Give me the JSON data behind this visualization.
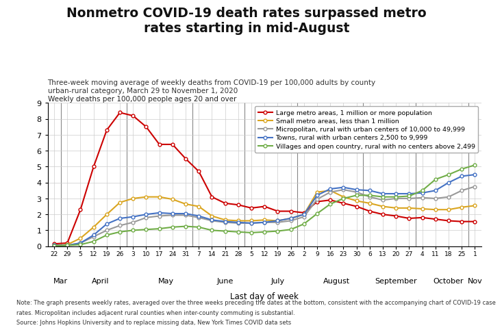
{
  "title": "Nonmetro COVID-19 death rates surpassed metro\nrates starting in mid-August",
  "subtitle": "Three-week moving average of weekly deaths from COVID-19 per 100,000 adults by county\nurban-rural category, March 29 to November 1, 2020",
  "ylabel": "Weekly deaths per 100,000 people ages 20 and over",
  "xlabel": "Last day of week",
  "note1": "Note: The graph presents weekly rates, averaged over the three weeks preceding the dates at the bottom, consistent with the accompanying chart of COVID-19 case",
  "note2": "rates. Micropolitan includes adjacent rural counties when inter-county commuting is substantial.",
  "note3": "Source: Johns Hopkins University and to replace missing data, New York Times COVID data sets",
  "x_tick_labels": [
    "22",
    "29",
    "5",
    "12",
    "19",
    "26",
    "3",
    "10",
    "17",
    "24",
    "31",
    "7",
    "14",
    "21",
    "28",
    "5",
    "12",
    "19",
    "26",
    "2",
    "9",
    "16",
    "23",
    "30",
    "6",
    "13",
    "20",
    "27",
    "4",
    "11",
    "18",
    "25",
    "1"
  ],
  "month_labels": [
    "Mar",
    "April",
    "May",
    "June",
    "July",
    "August",
    "September",
    "October",
    "Nov"
  ],
  "month_positions": [
    0,
    1,
    6,
    11,
    15,
    19,
    24,
    28,
    32
  ],
  "series": {
    "large_metro": {
      "label": "Large metro areas, 1 million or more population",
      "color": "#cc0000",
      "values": [
        0.15,
        0.2,
        2.3,
        5.0,
        7.3,
        8.4,
        8.2,
        7.5,
        6.4,
        6.4,
        5.5,
        4.7,
        3.1,
        2.7,
        2.6,
        2.4,
        2.5,
        2.2,
        2.2,
        2.1,
        2.8,
        2.9,
        2.7,
        2.5,
        2.2,
        2.0,
        1.9,
        1.75,
        1.8,
        1.7,
        1.6,
        1.55,
        1.55
      ]
    },
    "small_metro": {
      "label": "Small metro areas, less than 1 million",
      "color": "#daa520",
      "values": [
        0.05,
        0.1,
        0.5,
        1.2,
        2.0,
        2.75,
        3.0,
        3.1,
        3.1,
        2.95,
        2.65,
        2.5,
        1.9,
        1.65,
        1.6,
        1.6,
        1.65,
        1.6,
        1.75,
        2.0,
        3.4,
        3.5,
        3.1,
        2.85,
        2.7,
        2.5,
        2.4,
        2.4,
        2.35,
        2.3,
        2.3,
        2.45,
        2.55
      ]
    },
    "micropolitan": {
      "label": "Micropolitan, rural with urban centers of 10,000 to 49,999",
      "color": "#999999",
      "values": [
        0.05,
        0.05,
        0.2,
        0.6,
        1.0,
        1.3,
        1.5,
        1.8,
        1.9,
        1.95,
        1.95,
        1.8,
        1.6,
        1.5,
        1.45,
        1.45,
        1.5,
        1.5,
        1.6,
        1.85,
        2.95,
        3.4,
        3.55,
        3.4,
        3.1,
        2.9,
        3.0,
        3.0,
        3.05,
        3.0,
        3.1,
        3.5,
        3.75
      ]
    },
    "towns": {
      "label": "Towns, rural with urban centers 2,500 to 9,999",
      "color": "#4472c4",
      "values": [
        0.05,
        0.05,
        0.2,
        0.7,
        1.4,
        1.75,
        1.85,
        2.0,
        2.1,
        2.05,
        2.05,
        1.9,
        1.65,
        1.55,
        1.5,
        1.45,
        1.5,
        1.6,
        1.75,
        2.0,
        3.2,
        3.6,
        3.7,
        3.55,
        3.5,
        3.3,
        3.3,
        3.3,
        3.35,
        3.5,
        4.0,
        4.4,
        4.5
      ]
    },
    "villages": {
      "label": "Villages and open country, rural with no centers above 2,499",
      "color": "#70ad47",
      "values": [
        0.02,
        0.05,
        0.1,
        0.3,
        0.7,
        0.9,
        1.0,
        1.05,
        1.1,
        1.2,
        1.25,
        1.2,
        1.0,
        0.95,
        0.9,
        0.85,
        0.9,
        0.95,
        1.05,
        1.4,
        2.05,
        2.65,
        3.0,
        3.2,
        3.2,
        3.1,
        3.1,
        3.15,
        3.5,
        4.2,
        4.5,
        4.85,
        5.1
      ]
    }
  },
  "ylim": [
    0,
    9
  ],
  "yticks": [
    0,
    1,
    2,
    3,
    4,
    5,
    6,
    7,
    8,
    9
  ],
  "bg_color": "#ffffff",
  "grid_color": "#cccccc"
}
